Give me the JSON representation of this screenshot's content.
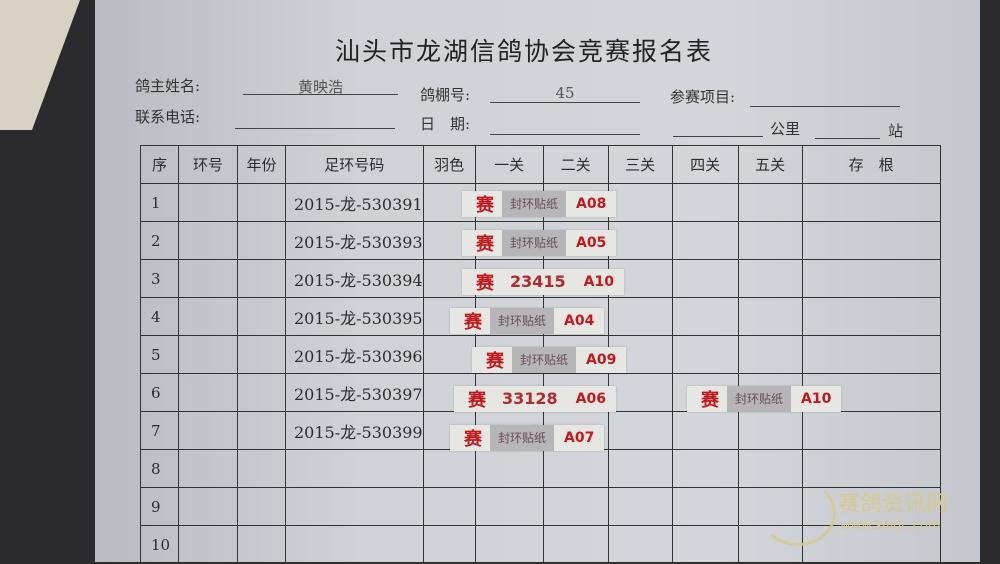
{
  "form": {
    "title": "汕头市龙湖信鸽协会竞赛报名表",
    "owner_label": "鸽主姓名:",
    "owner_value": "黄映浩",
    "loft_label": "鸽棚号:",
    "loft_value": "45",
    "event_label": "参赛项目:",
    "phone_label": "联系电话:",
    "date_label": "日　期:",
    "km_label": "公里",
    "station_label": "站"
  },
  "table": {
    "headers": [
      "序",
      "环号",
      "年份",
      "足环号码",
      "羽色",
      "一关",
      "二关",
      "三关",
      "四关",
      "五关",
      "存　根"
    ],
    "rows": [
      {
        "no": "1",
        "ring": "2015-龙-530391",
        "stickers": [
          {
            "col": 5,
            "mark": "赛",
            "mid": "封环贴纸",
            "code": "A08"
          }
        ]
      },
      {
        "no": "2",
        "ring": "2015-龙-530393",
        "stickers": [
          {
            "col": 5,
            "mark": "赛",
            "mid": "封环贴纸",
            "code": "A05"
          }
        ]
      },
      {
        "no": "3",
        "ring": "2015-龙-530394",
        "stickers": [
          {
            "col": 5,
            "mark": "赛",
            "mid": "23415",
            "code": "A10",
            "numeric": true
          }
        ]
      },
      {
        "no": "4",
        "ring": "2015-龙-530395",
        "stickers": [
          {
            "col": 5,
            "mark": "赛",
            "mid": "封环贴纸",
            "code": "A04"
          }
        ]
      },
      {
        "no": "5",
        "ring": "2015-龙-530396",
        "stickers": [
          {
            "col": 5,
            "mark": "赛",
            "mid": "封环贴纸",
            "code": "A09"
          }
        ]
      },
      {
        "no": "6",
        "ring": "2015-龙-530397",
        "stickers": [
          {
            "col": 5,
            "mark": "赛",
            "mid": "33128",
            "code": "A06",
            "numeric": true
          },
          {
            "col": 9,
            "mark": "赛",
            "mid": "封环贴纸",
            "code": "A10"
          }
        ]
      },
      {
        "no": "7",
        "ring": "2015-龙-530399",
        "stickers": [
          {
            "col": 5,
            "mark": "赛",
            "mid": "封环贴纸",
            "code": "A07"
          }
        ]
      },
      {
        "no": "8",
        "ring": "",
        "stickers": []
      },
      {
        "no": "9",
        "ring": "",
        "stickers": []
      },
      {
        "no": "10",
        "ring": "",
        "stickers": []
      }
    ]
  },
  "watermark": {
    "name": "赛鸽资讯网",
    "url": "www.saigc.com"
  },
  "colors": {
    "stamp_red": "#c4191c",
    "paper": "#cfd2d7"
  }
}
